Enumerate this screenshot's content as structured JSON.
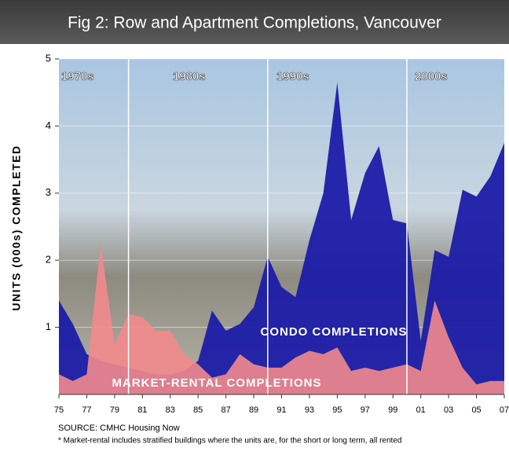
{
  "chart_data": {
    "type": "area",
    "title": "Fig 2: Row and Apartment Completions, Vancouver",
    "y_label": "UNITS (000s) COMPLETED",
    "x": [
      1975,
      1976,
      1977,
      1978,
      1979,
      1980,
      1981,
      1982,
      1983,
      1984,
      1985,
      1986,
      1987,
      1988,
      1989,
      1990,
      1991,
      1992,
      1993,
      1994,
      1995,
      1996,
      1997,
      1998,
      1999,
      2000,
      2001,
      2002,
      2003,
      2004,
      2005,
      2006,
      2007
    ],
    "series": [
      {
        "name": "CONDO COMPLETIONS",
        "color": "#1c1ca8",
        "values": [
          1.4,
          1.05,
          0.6,
          0.5,
          0.45,
          0.4,
          0.35,
          0.3,
          0.3,
          0.35,
          0.5,
          1.25,
          0.95,
          1.05,
          1.3,
          2.05,
          1.6,
          1.45,
          2.3,
          3.0,
          4.65,
          2.6,
          3.3,
          3.7,
          2.6,
          2.55,
          0.8,
          2.15,
          2.05,
          3.05,
          2.95,
          3.25,
          3.75
        ]
      },
      {
        "name": "MARKET-RENTAL COMPLETIONS",
        "color": "#f28a8c",
        "values": [
          0.3,
          0.2,
          0.3,
          2.25,
          0.75,
          1.2,
          1.15,
          0.95,
          0.95,
          0.6,
          0.45,
          0.25,
          0.3,
          0.6,
          0.45,
          0.4,
          0.4,
          0.55,
          0.65,
          0.6,
          0.7,
          0.35,
          0.4,
          0.35,
          0.4,
          0.45,
          0.35,
          1.4,
          0.85,
          0.4,
          0.15,
          0.2,
          0.2
        ]
      }
    ],
    "xlim": [
      1975,
      2007
    ],
    "xticks": [
      {
        "value": 1975,
        "label": "75"
      },
      {
        "value": 1977,
        "label": "77"
      },
      {
        "value": 1979,
        "label": "79"
      },
      {
        "value": 1981,
        "label": "81"
      },
      {
        "value": 1983,
        "label": "83"
      },
      {
        "value": 1985,
        "label": "85"
      },
      {
        "value": 1987,
        "label": "87"
      },
      {
        "value": 1989,
        "label": "89"
      },
      {
        "value": 1991,
        "label": "91"
      },
      {
        "value": 1993,
        "label": "93"
      },
      {
        "value": 1995,
        "label": "95"
      },
      {
        "value": 1997,
        "label": "97"
      },
      {
        "value": 1999,
        "label": "99"
      },
      {
        "value": 2001,
        "label": "01"
      },
      {
        "value": 2003,
        "label": "03"
      },
      {
        "value": 2005,
        "label": "05"
      },
      {
        "value": 2007,
        "label": "07"
      }
    ],
    "ylim": [
      0,
      5
    ],
    "yticks": [
      1,
      2,
      3,
      4,
      5
    ],
    "grid": true,
    "decade_lines": [
      1980,
      1990,
      2000
    ],
    "decades": [
      "1970s",
      "1980s",
      "1990s",
      "2000s"
    ],
    "source": "SOURCE: CMHC Housing Now",
    "note": "*  Market-rental includes stratified buildings where the units are, for the short or long term, all rented"
  }
}
